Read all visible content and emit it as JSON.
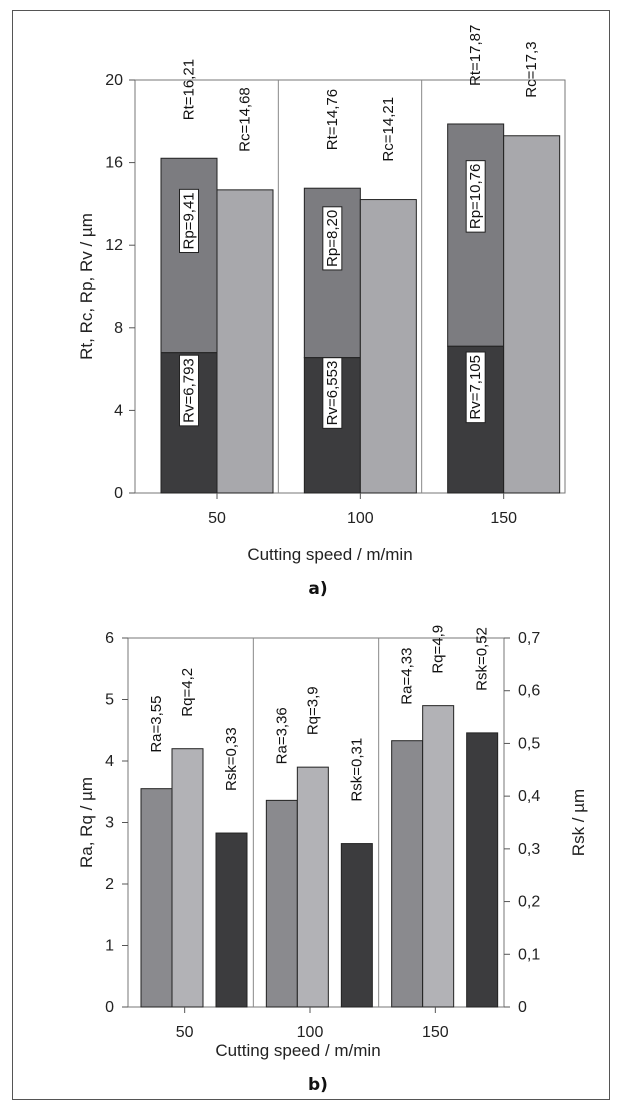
{
  "chart_data": [
    {
      "panel_label": "a)",
      "type": "bar",
      "stacked_first_bar": true,
      "categories": [
        "50",
        "100",
        "150"
      ],
      "xlabel": "Cutting speed / m/min",
      "ylabel": "Rt, Rc, Rp, Rv / µm",
      "ylim": [
        0,
        20
      ],
      "yticks": [
        "0",
        "4",
        "8",
        "12",
        "16",
        "20"
      ],
      "grid": "vertical separators between groups",
      "series": [
        {
          "name": "Rv",
          "values": [
            6.793,
            6.553,
            7.105
          ],
          "labels": [
            "Rv=6,793",
            "Rv=6,553",
            "Rv=7,105"
          ],
          "color": "#3c3c3e"
        },
        {
          "name": "Rp",
          "values": [
            9.41,
            8.2,
            10.76
          ],
          "labels": [
            "Rp=9,41",
            "Rp=8,20",
            "Rp=10,76"
          ],
          "color": "#7c7c80"
        },
        {
          "name": "Rt",
          "values": [
            16.21,
            14.76,
            17.87
          ],
          "labels": [
            "Rt=16,21",
            "Rt=14,76",
            "Rt=17,87"
          ],
          "color": "#7c7c80"
        },
        {
          "name": "Rc",
          "values": [
            14.68,
            14.21,
            17.3
          ],
          "labels": [
            "Rc=14,68",
            "Rc=14,21",
            "Rc=17,3"
          ],
          "color": "#a8a8ac"
        }
      ]
    },
    {
      "panel_label": "b)",
      "type": "bar",
      "categories": [
        "50",
        "100",
        "150"
      ],
      "xlabel": "Cutting speed / m/min",
      "ylabel": "Ra, Rq / µm",
      "ylabel_right": "Rsk / µm",
      "ylim": [
        0,
        6
      ],
      "ylim_right": [
        0,
        0.7
      ],
      "yticks": [
        "0",
        "1",
        "2",
        "3",
        "4",
        "5",
        "6"
      ],
      "yticks_right": [
        "0",
        "0,1",
        "0,2",
        "0,3",
        "0,4",
        "0,5",
        "0,6",
        "0,7"
      ],
      "series": [
        {
          "name": "Ra",
          "axis": "left",
          "values": [
            3.55,
            3.36,
            4.33
          ],
          "labels": [
            "Ra=3,55",
            "Ra=3,36",
            "Ra=4,33"
          ],
          "color": "#8a8a8e"
        },
        {
          "name": "Rq",
          "axis": "left",
          "values": [
            4.2,
            3.9,
            4.9
          ],
          "labels": [
            "Rq=4,2",
            "Rq=3,9",
            "Rq=4,9"
          ],
          "color": "#b2b2b6"
        },
        {
          "name": "Rsk",
          "axis": "right",
          "values": [
            0.33,
            0.31,
            0.52
          ],
          "labels": [
            "Rsk=0,33",
            "Rsk=0,31",
            "Rsk=0,52"
          ],
          "color": "#3c3c3e"
        }
      ]
    }
  ]
}
